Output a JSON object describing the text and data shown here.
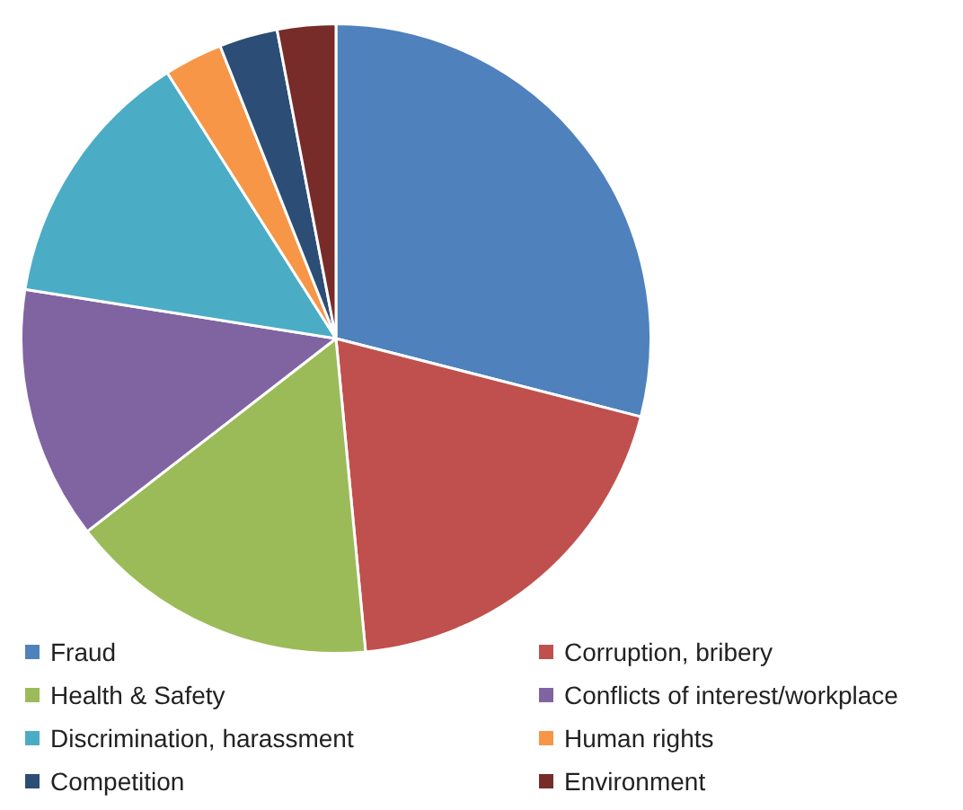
{
  "chart_data": {
    "type": "pie",
    "categories": [
      "Fraud",
      "Corruption, bribery",
      "Health & Safety",
      "Conflicts of interest/workplace",
      "Discrimination, harassment",
      "Human rights",
      "Competition",
      "Environment"
    ],
    "values": [
      29,
      19.5,
      16,
      13,
      13.5,
      3,
      3,
      3
    ],
    "colors": [
      "#4f81bd",
      "#c0504d",
      "#9bbb59",
      "#8064a2",
      "#4bacc6",
      "#f79646",
      "#2c4d75",
      "#772c2a"
    ],
    "legend": "bottom"
  }
}
